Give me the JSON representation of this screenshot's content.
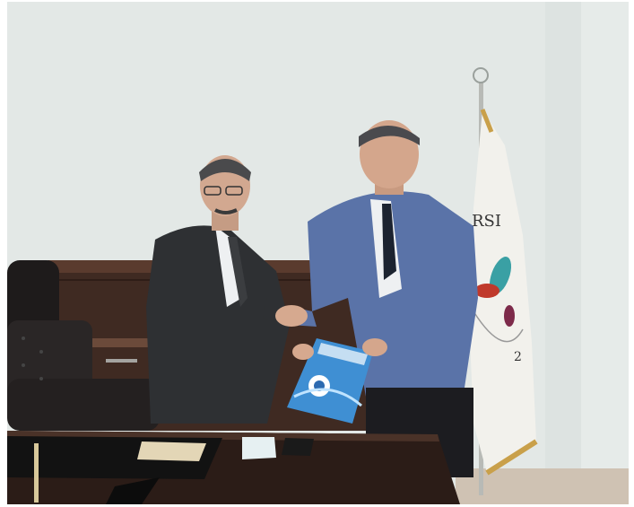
{
  "photo": {
    "flag_text": "RSI",
    "flag_year": "2"
  },
  "colors": {
    "wall": "#e3e8e6",
    "shelf_wood": "#3f2a22",
    "desk_wood": "#2b1c17",
    "suit_left": "#2e3033",
    "suit_right": "#5a73a8",
    "flag_fabric": "#f2f1ec",
    "flag_fringe": "#c9a04a",
    "folder_blue": "#3f8fd3"
  }
}
